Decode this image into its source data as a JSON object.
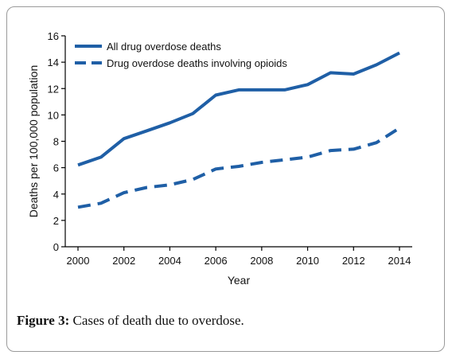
{
  "chart_data": {
    "type": "line",
    "x": [
      2000,
      2001,
      2002,
      2003,
      2004,
      2005,
      2006,
      2007,
      2008,
      2009,
      2010,
      2011,
      2012,
      2013,
      2014
    ],
    "series": [
      {
        "name": "All drug overdose deaths",
        "style": "solid",
        "values": [
          6.2,
          6.8,
          8.2,
          8.8,
          9.4,
          10.1,
          11.5,
          11.9,
          11.9,
          11.9,
          12.3,
          13.2,
          13.1,
          13.8,
          14.7
        ]
      },
      {
        "name": "Drug overdose deaths involving opioids",
        "style": "dashed",
        "values": [
          3.0,
          3.3,
          4.1,
          4.5,
          4.7,
          5.1,
          5.9,
          6.1,
          6.4,
          6.6,
          6.8,
          7.3,
          7.4,
          7.9,
          9.0
        ]
      }
    ],
    "xlabel": "Year",
    "ylabel": "Deaths per 100,000 population",
    "xlim": [
      2000,
      2014
    ],
    "ylim": [
      0,
      16
    ],
    "x_ticks": [
      "2000",
      "2002",
      "2004",
      "2006",
      "2008",
      "2010",
      "2012",
      "2014"
    ],
    "y_ticks": [
      "0",
      "2",
      "4",
      "6",
      "8",
      "10",
      "12",
      "14",
      "16"
    ],
    "legend_position": "top-left",
    "grid": false,
    "line_color": "#1f5fa6"
  },
  "caption": {
    "label": "Figure 3:",
    "text": " Cases of death due to overdose."
  }
}
